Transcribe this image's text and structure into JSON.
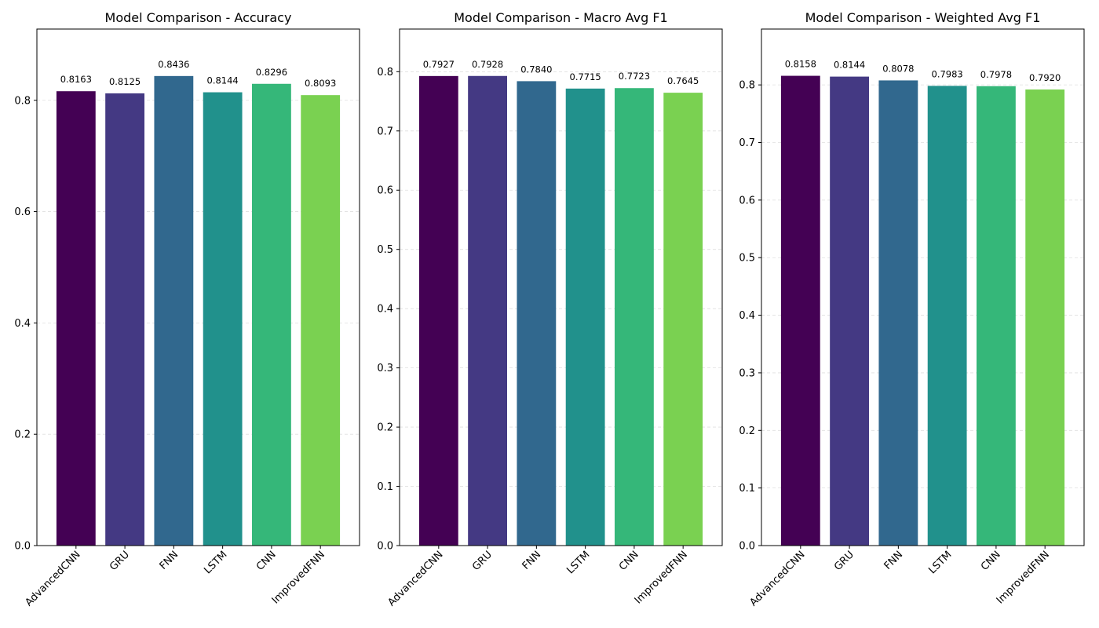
{
  "chart_data": [
    {
      "type": "bar",
      "title": "Model Comparison - Accuracy",
      "categories": [
        "AdvancedCNN",
        "GRU",
        "FNN",
        "LSTM",
        "CNN",
        "ImprovedFNN"
      ],
      "values": [
        0.8163,
        0.8125,
        0.8436,
        0.8144,
        0.8296,
        0.8093
      ],
      "value_labels": [
        "0.8163",
        "0.8125",
        "0.8436",
        "0.8144",
        "0.8296",
        "0.8093"
      ],
      "colors": [
        "#440154",
        "#443983",
        "#31688e",
        "#21918c",
        "#35b779",
        "#7ad151"
      ],
      "ylim": [
        0,
        0.928
      ],
      "yticks": [
        0.0,
        0.2,
        0.4,
        0.6,
        0.8
      ],
      "ytick_labels": [
        "0.0",
        "0.2",
        "0.4",
        "0.6",
        "0.8"
      ],
      "grid": true,
      "xlabel": "",
      "ylabel": ""
    },
    {
      "type": "bar",
      "title": "Model Comparison - Macro Avg F1",
      "categories": [
        "AdvancedCNN",
        "GRU",
        "FNN",
        "LSTM",
        "CNN",
        "ImprovedFNN"
      ],
      "values": [
        0.7927,
        0.7928,
        0.784,
        0.7715,
        0.7723,
        0.7645
      ],
      "value_labels": [
        "0.7927",
        "0.7928",
        "0.7840",
        "0.7715",
        "0.7723",
        "0.7645"
      ],
      "colors": [
        "#440154",
        "#443983",
        "#31688e",
        "#21918c",
        "#35b779",
        "#7ad151"
      ],
      "ylim": [
        0,
        0.872
      ],
      "yticks": [
        0.0,
        0.1,
        0.2,
        0.3,
        0.4,
        0.5,
        0.6,
        0.7,
        0.8
      ],
      "ytick_labels": [
        "0.0",
        "0.1",
        "0.2",
        "0.3",
        "0.4",
        "0.5",
        "0.6",
        "0.7",
        "0.8"
      ],
      "grid": true,
      "xlabel": "",
      "ylabel": ""
    },
    {
      "type": "bar",
      "title": "Model Comparison - Weighted Avg F1",
      "categories": [
        "AdvancedCNN",
        "GRU",
        "FNN",
        "LSTM",
        "CNN",
        "ImprovedFNN"
      ],
      "values": [
        0.8158,
        0.8144,
        0.8078,
        0.7983,
        0.7978,
        0.792
      ],
      "value_labels": [
        "0.8158",
        "0.8144",
        "0.8078",
        "0.7983",
        "0.7978",
        "0.7920"
      ],
      "colors": [
        "#440154",
        "#443983",
        "#31688e",
        "#21918c",
        "#35b779",
        "#7ad151"
      ],
      "ylim": [
        0,
        0.897
      ],
      "yticks": [
        0.0,
        0.1,
        0.2,
        0.3,
        0.4,
        0.5,
        0.6,
        0.7,
        0.8
      ],
      "ytick_labels": [
        "0.0",
        "0.1",
        "0.2",
        "0.3",
        "0.4",
        "0.5",
        "0.6",
        "0.7",
        "0.8"
      ],
      "grid": true,
      "xlabel": "",
      "ylabel": ""
    }
  ]
}
